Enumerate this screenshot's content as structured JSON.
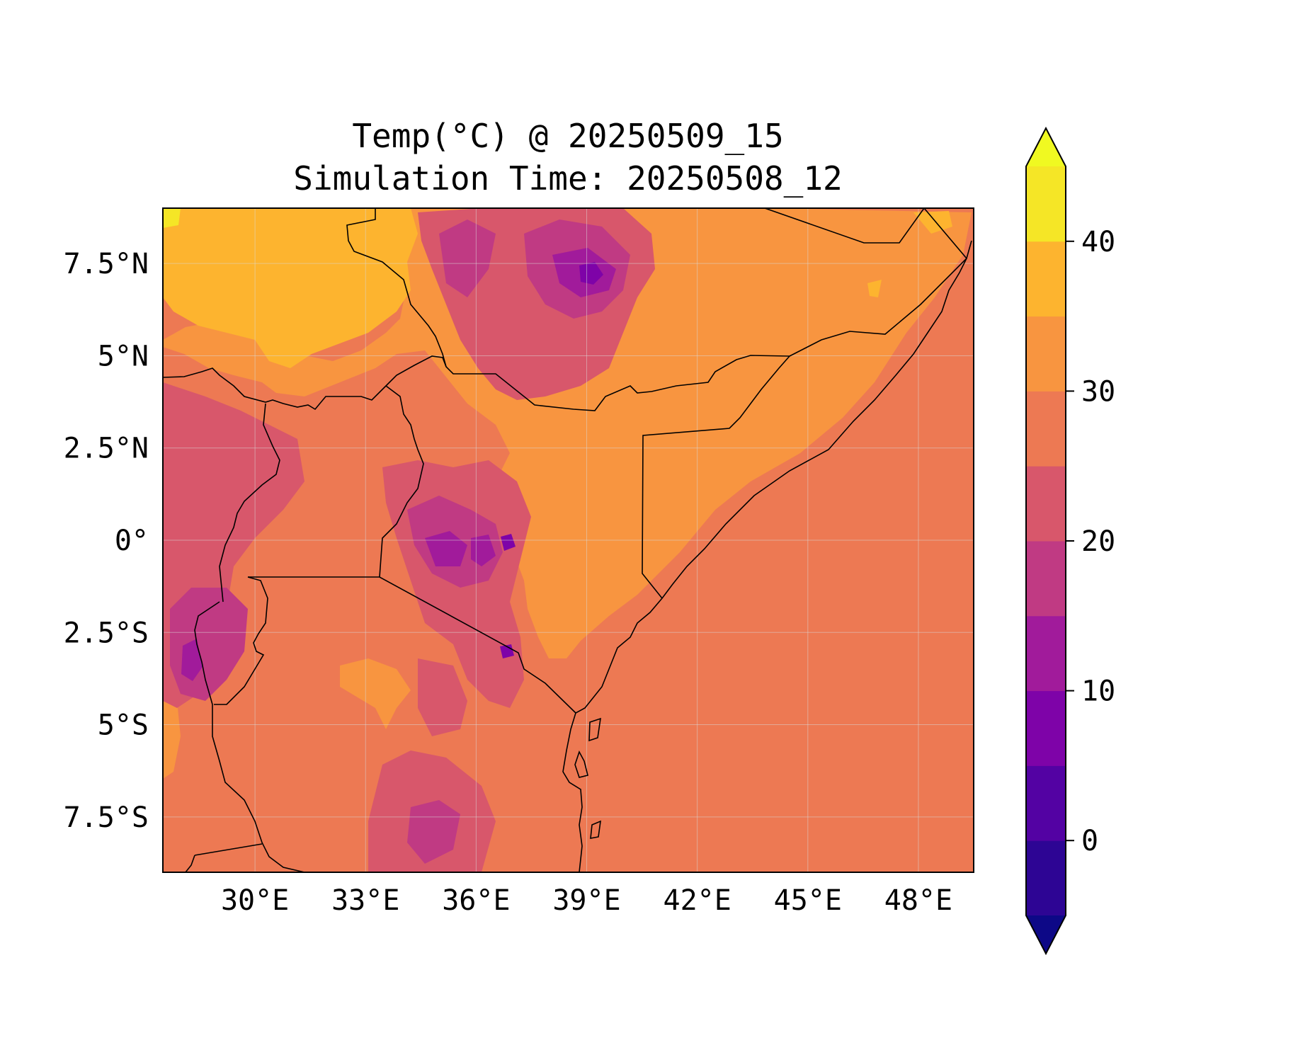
{
  "figure": {
    "title_line1": "Temp(°C) @ 20250509_15",
    "title_line2": "Simulation Time: 20250508_12"
  },
  "map": {
    "variable": "Temp(°C)",
    "extent": {
      "lon_min": 27.5,
      "lon_max": 49.5,
      "lat_min": -9,
      "lat_max": 9
    },
    "x_ticks": [
      {
        "value": 30,
        "label": "30°E"
      },
      {
        "value": 33,
        "label": "33°E"
      },
      {
        "value": 36,
        "label": "36°E"
      },
      {
        "value": 39,
        "label": "39°E"
      },
      {
        "value": 42,
        "label": "42°E"
      },
      {
        "value": 45,
        "label": "45°E"
      },
      {
        "value": 48,
        "label": "48°E"
      }
    ],
    "y_ticks": [
      {
        "value": 7.5,
        "label": "7.5°N"
      },
      {
        "value": 5,
        "label": "5°N"
      },
      {
        "value": 2.5,
        "label": "2.5°N"
      },
      {
        "value": 0,
        "label": "0°"
      },
      {
        "value": -2.5,
        "label": "2.5°S"
      },
      {
        "value": -5,
        "label": "5°S"
      },
      {
        "value": -7.5,
        "label": "7.5°S"
      }
    ],
    "ocean_value_band": "25–30",
    "colors": {
      "frame": "#000000",
      "border": "#000000",
      "grid": "#d9d9d9"
    }
  },
  "colorbar": {
    "min": -5,
    "max": 45,
    "extend": "both",
    "levels": [
      -5,
      0,
      5,
      10,
      15,
      20,
      25,
      30,
      35,
      40,
      45
    ],
    "colors": [
      "#2d0594",
      "#5302a3",
      "#7e03a8",
      "#a11b9b",
      "#c03a83",
      "#d8576b",
      "#ed7953",
      "#f89540",
      "#fdb42f",
      "#f5e626"
    ],
    "under_color": "#0d0887",
    "over_color": "#f0f921",
    "tick_values": [
      0,
      10,
      20,
      30,
      40
    ],
    "tick_labels": [
      "0",
      "10",
      "20",
      "30",
      "40"
    ]
  }
}
